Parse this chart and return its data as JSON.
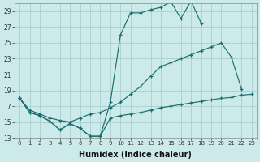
{
  "xlabel": "Humidex (Indice chaleur)",
  "bg_color": "#cdeaea",
  "grid_color": "#aacfcf",
  "line_color": "#1a6e6e",
  "xlim": [
    -0.5,
    23.5
  ],
  "ylim": [
    13,
    30
  ],
  "yticks": [
    13,
    15,
    17,
    19,
    21,
    23,
    25,
    27,
    29
  ],
  "xticks": [
    0,
    1,
    2,
    3,
    4,
    5,
    6,
    7,
    8,
    9,
    10,
    11,
    12,
    13,
    14,
    15,
    16,
    17,
    18,
    19,
    20,
    21,
    22,
    23
  ],
  "line1_x": [
    0,
    1,
    2,
    3,
    4,
    5,
    6,
    7,
    8,
    9,
    10,
    11,
    12,
    13,
    14,
    15,
    16,
    17,
    18
  ],
  "line1_y": [
    18.0,
    16.2,
    15.8,
    15.1,
    14.0,
    14.8,
    14.2,
    13.2,
    13.2,
    17.5,
    26.0,
    28.8,
    28.8,
    29.2,
    29.5,
    30.2,
    28.1,
    30.3,
    27.5
  ],
  "line2_x": [
    0,
    1,
    2,
    3,
    4,
    5,
    6,
    7,
    8,
    9,
    10,
    11,
    12,
    13,
    14,
    15,
    16,
    17,
    18,
    19,
    20,
    21,
    22,
    23
  ],
  "line2_y": [
    18.0,
    16.5,
    16.0,
    15.5,
    15.2,
    15.0,
    15.5,
    16.0,
    16.2,
    16.8,
    17.5,
    18.5,
    19.5,
    20.8,
    22.0,
    22.5,
    23.0,
    23.5,
    24.0,
    24.5,
    25.0,
    23.2,
    19.2,
    null
  ],
  "line3_x": [
    0,
    1,
    2,
    3,
    4,
    5,
    6,
    7,
    8,
    9,
    10,
    11,
    12,
    13,
    14,
    15,
    16,
    17,
    18,
    19,
    20,
    21,
    22,
    23
  ],
  "line3_y": [
    18.0,
    16.2,
    15.8,
    15.1,
    14.0,
    14.8,
    14.2,
    13.2,
    13.2,
    15.5,
    15.8,
    16.0,
    16.2,
    16.5,
    16.8,
    17.0,
    17.2,
    17.4,
    17.6,
    17.8,
    18.0,
    18.1,
    18.4,
    18.5
  ]
}
